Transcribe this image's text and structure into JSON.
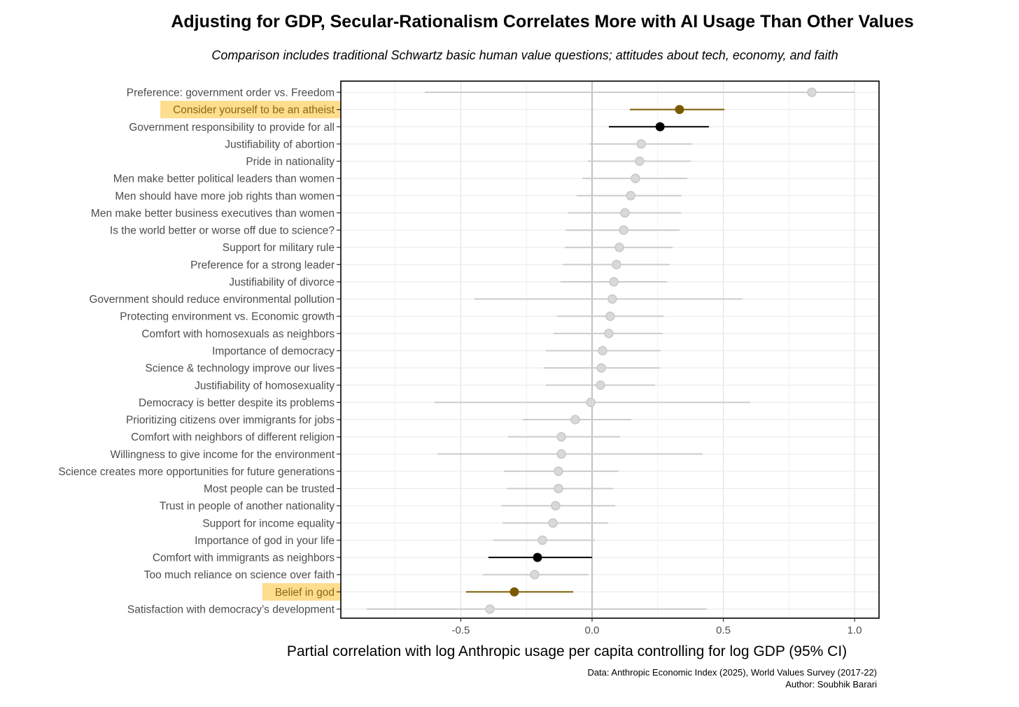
{
  "chart_data": {
    "type": "scatter",
    "subtype": "dot-and-whisker",
    "title": "Adjusting for GDP, Secular-Rationalism Correlates More with AI Usage Than Other Values",
    "subtitle": "Comparison includes traditional Schwartz basic human value questions; attitudes about tech, economy, and faith",
    "xlabel": "Partial correlation with log Anthropic usage per capita controlling for log GDP (95% CI)",
    "xlim": [
      -0.957,
      1.093
    ],
    "xticks": [
      -0.5,
      0.0,
      0.5,
      1.0
    ],
    "xtick_labels": [
      "-0.5",
      "0.0",
      "0.5",
      "1.0"
    ],
    "grid": true,
    "caption_lines": [
      "Data: Anthropic Economic Index (2025), World Values Survey (2017-22)",
      "Author: Soubhik Barari"
    ],
    "colors": {
      "muted": "#cccccc",
      "significant": "#000000",
      "highlight_point": "#7a5a00",
      "highlight_band": "#fdd77a",
      "highlight_label": "#8a6a10"
    },
    "rows": [
      {
        "label": "Preference: government order vs. Freedom",
        "estimate": 0.837,
        "lo": -0.637,
        "hi": 1.0,
        "style": "muted"
      },
      {
        "label": "Consider yourself to be an atheist",
        "estimate": 0.333,
        "lo": 0.144,
        "hi": 0.504,
        "style": "highlight"
      },
      {
        "label": "Government responsibility to provide for all",
        "estimate": 0.259,
        "lo": 0.064,
        "hi": 0.445,
        "style": "significant"
      },
      {
        "label": "Justifiability of abortion",
        "estimate": 0.187,
        "lo": -0.01,
        "hi": 0.379,
        "style": "muted"
      },
      {
        "label": "Pride in nationality",
        "estimate": 0.181,
        "lo": -0.016,
        "hi": 0.376,
        "style": "muted"
      },
      {
        "label": "Men make better political leaders than women",
        "estimate": 0.165,
        "lo": -0.037,
        "hi": 0.363,
        "style": "muted"
      },
      {
        "label": "Men should have more job rights than women",
        "estimate": 0.147,
        "lo": -0.059,
        "hi": 0.341,
        "style": "muted"
      },
      {
        "label": "Men make better business executives than women",
        "estimate": 0.125,
        "lo": -0.093,
        "hi": 0.339,
        "style": "muted"
      },
      {
        "label": "Is the world better or worse off due to science?",
        "estimate": 0.12,
        "lo": -0.101,
        "hi": 0.333,
        "style": "muted"
      },
      {
        "label": "Support for military rule",
        "estimate": 0.104,
        "lo": -0.104,
        "hi": 0.307,
        "style": "muted"
      },
      {
        "label": "Preference for a strong leader",
        "estimate": 0.093,
        "lo": -0.112,
        "hi": 0.296,
        "style": "muted"
      },
      {
        "label": "Justifiability of divorce",
        "estimate": 0.083,
        "lo": -0.12,
        "hi": 0.285,
        "style": "muted"
      },
      {
        "label": "Government should reduce environmental pollution",
        "estimate": 0.077,
        "lo": -0.448,
        "hi": 0.571,
        "style": "muted"
      },
      {
        "label": "Protecting environment vs. Economic growth",
        "estimate": 0.069,
        "lo": -0.133,
        "hi": 0.272,
        "style": "muted"
      },
      {
        "label": "Comfort with homosexuals as neighbors",
        "estimate": 0.064,
        "lo": -0.147,
        "hi": 0.269,
        "style": "muted"
      },
      {
        "label": "Importance of democracy",
        "estimate": 0.04,
        "lo": -0.176,
        "hi": 0.261,
        "style": "muted"
      },
      {
        "label": "Science & technology improve our lives",
        "estimate": 0.035,
        "lo": -0.184,
        "hi": 0.259,
        "style": "muted"
      },
      {
        "label": "Justifiability of homosexuality",
        "estimate": 0.032,
        "lo": -0.176,
        "hi": 0.24,
        "style": "muted"
      },
      {
        "label": "Democracy is better despite its problems",
        "estimate": -0.005,
        "lo": -0.6,
        "hi": 0.603,
        "style": "muted"
      },
      {
        "label": "Prioritizing citizens over immigrants for jobs",
        "estimate": -0.064,
        "lo": -0.264,
        "hi": 0.149,
        "style": "muted"
      },
      {
        "label": "Comfort with neighbors of different religion",
        "estimate": -0.117,
        "lo": -0.32,
        "hi": 0.107,
        "style": "muted"
      },
      {
        "label": "Willingness to give income for the environment",
        "estimate": -0.117,
        "lo": -0.589,
        "hi": 0.421,
        "style": "muted"
      },
      {
        "label": "Science creates more opportunities for future generations",
        "estimate": -0.128,
        "lo": -0.336,
        "hi": 0.101,
        "style": "muted"
      },
      {
        "label": "Most people can be trusted",
        "estimate": -0.128,
        "lo": -0.323,
        "hi": 0.08,
        "style": "muted"
      },
      {
        "label": "Trust in people of another nationality",
        "estimate": -0.139,
        "lo": -0.344,
        "hi": 0.088,
        "style": "muted"
      },
      {
        "label": "Support for income equality",
        "estimate": -0.149,
        "lo": -0.341,
        "hi": 0.061,
        "style": "muted"
      },
      {
        "label": "Importance of god in your life",
        "estimate": -0.189,
        "lo": -0.376,
        "hi": 0.011,
        "style": "muted"
      },
      {
        "label": "Comfort with immigrants as neighbors",
        "estimate": -0.208,
        "lo": -0.395,
        "hi": 0.0,
        "style": "significant"
      },
      {
        "label": "Too much reliance on science over faith",
        "estimate": -0.219,
        "lo": -0.416,
        "hi": -0.013,
        "style": "muted"
      },
      {
        "label": "Belief in god",
        "estimate": -0.296,
        "lo": -0.48,
        "hi": -0.072,
        "style": "highlight"
      },
      {
        "label": "Satisfaction with democracy’s development",
        "estimate": -0.389,
        "lo": -0.859,
        "hi": 0.437,
        "style": "muted"
      }
    ]
  }
}
